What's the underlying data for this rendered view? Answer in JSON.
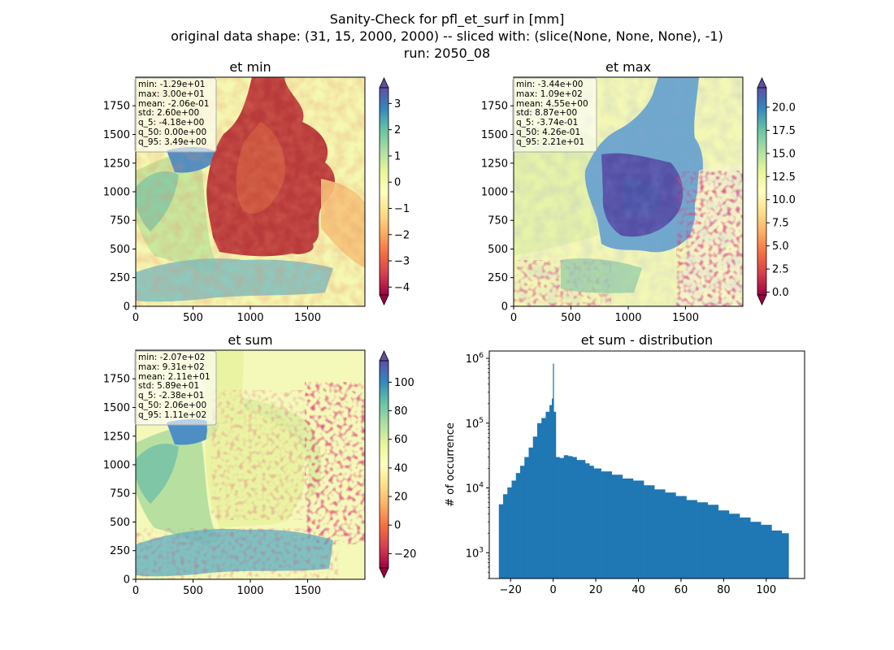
{
  "figure": {
    "title_lines": [
      "Sanity-Check for pfl_et_surf in [mm]",
      "original data shape: (31, 15, 2000, 2000) -- sliced with: (slice(None, None, None), -1)",
      "run: 2050_08"
    ]
  },
  "chart_data": [
    {
      "type": "heatmap",
      "title": "et min",
      "xlim": [
        0,
        2000
      ],
      "ylim": [
        0,
        2000
      ],
      "xticks": [
        "0",
        "500",
        "1000",
        "1500"
      ],
      "yticks": [
        "0",
        "250",
        "500",
        "750",
        "1000",
        "1250",
        "1500",
        "1750"
      ],
      "colormap": "Spectral",
      "colorbar": {
        "min": -4.3,
        "max": 3.6,
        "ticks": [
          "3",
          "2",
          "1",
          "0",
          "−1",
          "−2",
          "−3",
          "−4"
        ],
        "extend": "both"
      },
      "stats": [
        "min: -1.29e+01",
        "max: 3.00e+01",
        "mean: -2.06e-01",
        "std: 2.60e+00",
        "q_5: -4.18e+00",
        "q_50: 0.00e+00",
        "q_95: 3.49e+00"
      ]
    },
    {
      "type": "heatmap",
      "title": "et max",
      "xlim": [
        0,
        2000
      ],
      "ylim": [
        0,
        2000
      ],
      "xticks": [
        "0",
        "500",
        "1000",
        "1500"
      ],
      "yticks": [
        "0",
        "250",
        "500",
        "750",
        "1000",
        "1250",
        "1500",
        "1750"
      ],
      "colormap": "Spectral",
      "colorbar": {
        "min": -0.3,
        "max": 22.1,
        "ticks": [
          "20.0",
          "17.5",
          "15.0",
          "12.5",
          "10.0",
          "7.5",
          "5.0",
          "2.5",
          "0.0"
        ],
        "extend": "both"
      },
      "stats": [
        "min: -3.44e+00",
        "max: 1.09e+02",
        "mean: 4.55e+00",
        "std: 8.87e+00",
        "q_5: -3.74e-01",
        "q_50: 4.26e-01",
        "q_95: 2.21e+01"
      ]
    },
    {
      "type": "heatmap",
      "title": "et sum",
      "xlim": [
        0,
        2000
      ],
      "ylim": [
        0,
        2000
      ],
      "xticks": [
        "0",
        "500",
        "1000",
        "1500"
      ],
      "yticks": [
        "0",
        "250",
        "500",
        "750",
        "1000",
        "1250",
        "1500",
        "1750"
      ],
      "colormap": "Spectral",
      "colorbar": {
        "min": -30,
        "max": 115,
        "ticks": [
          "100",
          "80",
          "60",
          "40",
          "20",
          "0",
          "−20"
        ],
        "extend": "both"
      },
      "stats": [
        "min: -2.07e+02",
        "max: 9.31e+02",
        "mean: 2.11e+01",
        "std: 5.89e+01",
        "q_5: -2.38e+01",
        "q_50: 2.06e+00",
        "q_95: 1.11e+02"
      ]
    },
    {
      "type": "bar",
      "title": "et sum - distribution",
      "xlabel": "",
      "ylabel": "# of occurrence",
      "yscale": "log",
      "xlim": [
        -30,
        118
      ],
      "ylim": [
        400,
        1300000
      ],
      "xticks": [
        "−20",
        "0",
        "20",
        "40",
        "60",
        "80",
        "100"
      ],
      "yticks": [
        "10^3",
        "10^4",
        "10^5",
        "10^6"
      ],
      "color": "#1f77b4",
      "x": [
        -24.5,
        -22.5,
        -20.5,
        -18.5,
        -16.5,
        -14.5,
        -12.5,
        -10.5,
        -8.5,
        -6.5,
        -4.5,
        -2.5,
        -1.0,
        -0.25,
        0.0,
        0.5,
        2.0,
        4.0,
        6.0,
        8.0,
        10.0,
        12.0,
        14.0,
        16.0,
        18.0,
        20.0,
        25.0,
        30.0,
        35.0,
        40.0,
        45.0,
        50.0,
        55.0,
        60.0,
        65.0,
        70.0,
        75.0,
        80.0,
        85.0,
        90.0,
        95.0,
        100.0,
        105.0,
        109.5
      ],
      "values": [
        5600,
        8000,
        10200,
        13000,
        17000,
        22000,
        30000,
        42000,
        62000,
        100000,
        120000,
        150000,
        190000,
        240000,
        830000,
        150000,
        30000,
        29000,
        32000,
        31000,
        30000,
        27000,
        27000,
        24000,
        22000,
        20000,
        18000,
        16000,
        14000,
        13000,
        11000,
        9500,
        8500,
        7500,
        6500,
        6000,
        5500,
        4500,
        4000,
        3500,
        3000,
        2700,
        2200,
        2000
      ]
    }
  ]
}
